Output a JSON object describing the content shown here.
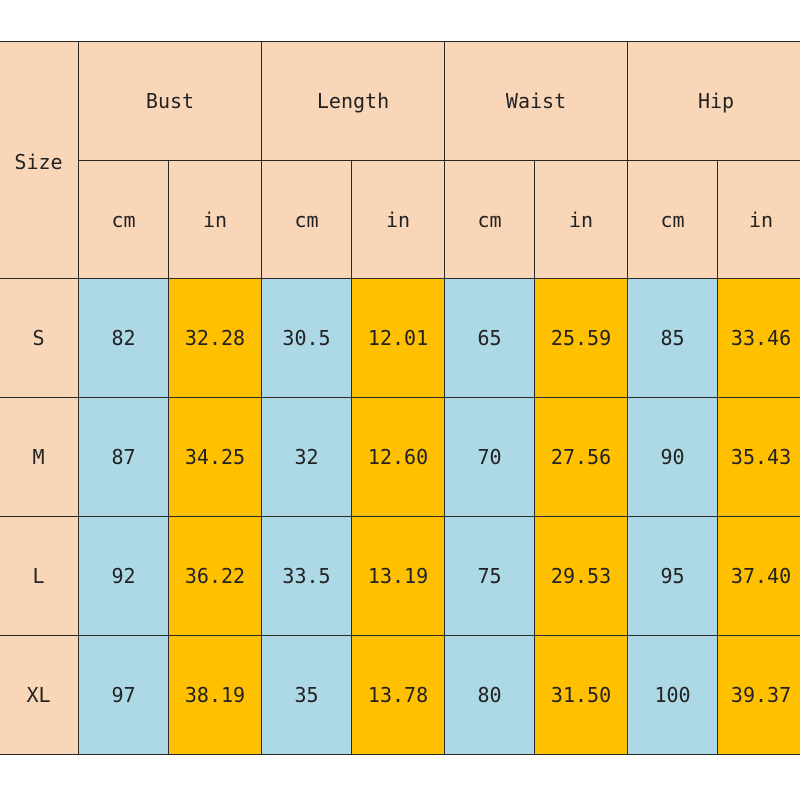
{
  "table": {
    "size_label": "Size",
    "groups": [
      "Bust",
      "Length",
      "Waist",
      "Hip"
    ],
    "units": [
      "cm",
      "in",
      "cm",
      "in",
      "cm",
      "in",
      "cm",
      "in"
    ],
    "rows": [
      {
        "size": "S",
        "values": [
          "82",
          "32.28",
          "30.5",
          "12.01",
          "65",
          "25.59",
          "85",
          "33.46"
        ]
      },
      {
        "size": "M",
        "values": [
          "87",
          "34.25",
          "32",
          "12.60",
          "70",
          "27.56",
          "90",
          "35.43"
        ]
      },
      {
        "size": "L",
        "values": [
          "92",
          "36.22",
          "33.5",
          "13.19",
          "75",
          "29.53",
          "95",
          "37.40"
        ]
      },
      {
        "size": "XL",
        "values": [
          "97",
          "38.19",
          "35",
          "13.78",
          "80",
          "31.50",
          "100",
          "39.37"
        ]
      }
    ]
  },
  "colors": {
    "header_bg": "#fad6b8",
    "cm_bg": "#add8e6",
    "in_bg": "#ffc000",
    "border": "#2a2a2a"
  }
}
